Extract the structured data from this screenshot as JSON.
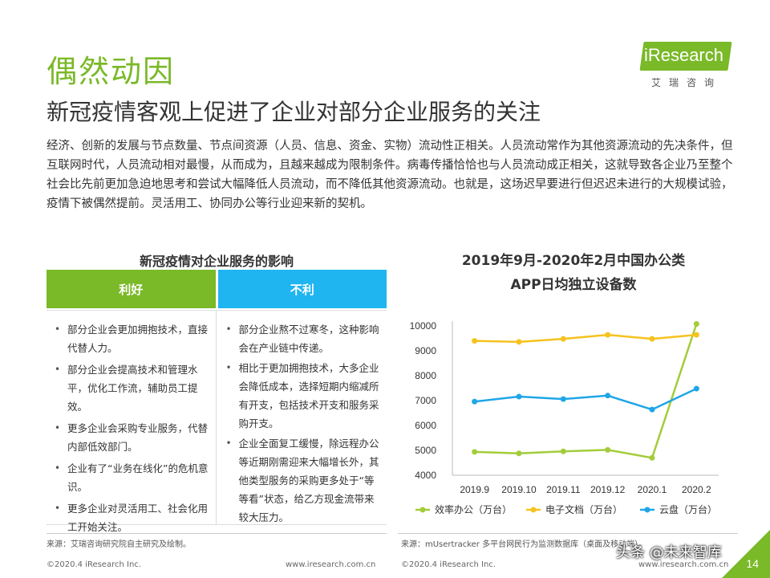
{
  "header": {
    "title": "偶然动因",
    "subtitle": "新冠疫情客观上促进了企业对部分企业服务的关注",
    "logo_text": "iResearch",
    "logo_cn": "艾瑞咨询"
  },
  "intro": "经济、创新的发展与节点数量、节点间资源（人员、信息、资金、实物）流动性正相关。人员流动常作为其他资源流动的先决条件，但互联网时代，人员流动相对最慢，从而成为，且越来越成为限制条件。病毒传播恰恰也与人员流动成正相关，这就导致各企业乃至整个社会比先前更加急迫地思考和尝试大幅降低人员流动，而不降低其他资源流动。也就是，这场迟早要进行但迟迟未进行的大规模试验，疫情下被偶然提前。灵活用工、协同办公等行业迎来新的契机。",
  "impact_table": {
    "title": "新冠疫情对企业服务的影响",
    "good_header": "利好",
    "bad_header": "不利",
    "good_items": [
      "部分企业会更加拥抱技术，直接代替人力。",
      "部分企业会提高技术和管理水平，优化工作流，辅助员工提效。",
      "更多企业会采购专业服务，代替内部低效部门。",
      "企业有了“业务在线化”的危机意识。",
      "更多企业对灵活用工、社会化用工开始关注。"
    ],
    "bad_items": [
      "部分企业熬不过寒冬，这种影响会在产业链中传递。",
      "相比于更加拥抱技术，大多企业会降低成本，选择短期内缩减所有开支，包括技术开支和服务采购开支。",
      "企业全面复工缓慢，除远程办公等近期刚需迎来大幅增长外，其他类型服务的采购更多处于“等等看”状态，给乙方现金流带来较大压力。"
    ]
  },
  "chart_title_line1": "2019年9月-2020年2月中国办公类",
  "chart_title_line2": "APP日均独立设备数",
  "chart_data": {
    "type": "line",
    "title": "2019年9月-2020年2月中国办公类APP日均独立设备数",
    "categories": [
      "2019.9",
      "2019.10",
      "2019.11",
      "2019.12",
      "2020.1",
      "2020.2"
    ],
    "y_ticks": [
      "10000",
      "9000",
      "8000",
      "7000",
      "6000",
      "5000",
      "4000"
    ],
    "ylim": [
      4000,
      10000
    ],
    "grid": false,
    "legend_position": "bottom",
    "series": [
      {
        "name": "效率办公（万台）",
        "color": "#a3cc3a",
        "values": [
          4940,
          4880,
          4960,
          5020,
          4700,
          10080
        ]
      },
      {
        "name": "电子文档（万台）",
        "color": "#f6c21e",
        "values": [
          9400,
          9360,
          9480,
          9640,
          9480,
          9640
        ]
      },
      {
        "name": "云盘（万台）",
        "color": "#1fa6e8",
        "values": [
          6960,
          7160,
          7060,
          7200,
          6640,
          7480
        ]
      }
    ]
  },
  "sources": {
    "left": "来源：艾瑞咨询研究院自主研究及绘制。",
    "right": "来源：mUsertracker 多平台网民行为监测数据库（桌面及移动端）。"
  },
  "footer": {
    "copyright_left": "©2020.4 iResearch Inc.",
    "url_left": "www.iresearch.com.cn",
    "copyright_right": "©2020.4 iResearch Inc.",
    "url_right": "www.iresearch.com.cn",
    "page": "14",
    "watermark": "头条 @未来智库"
  }
}
